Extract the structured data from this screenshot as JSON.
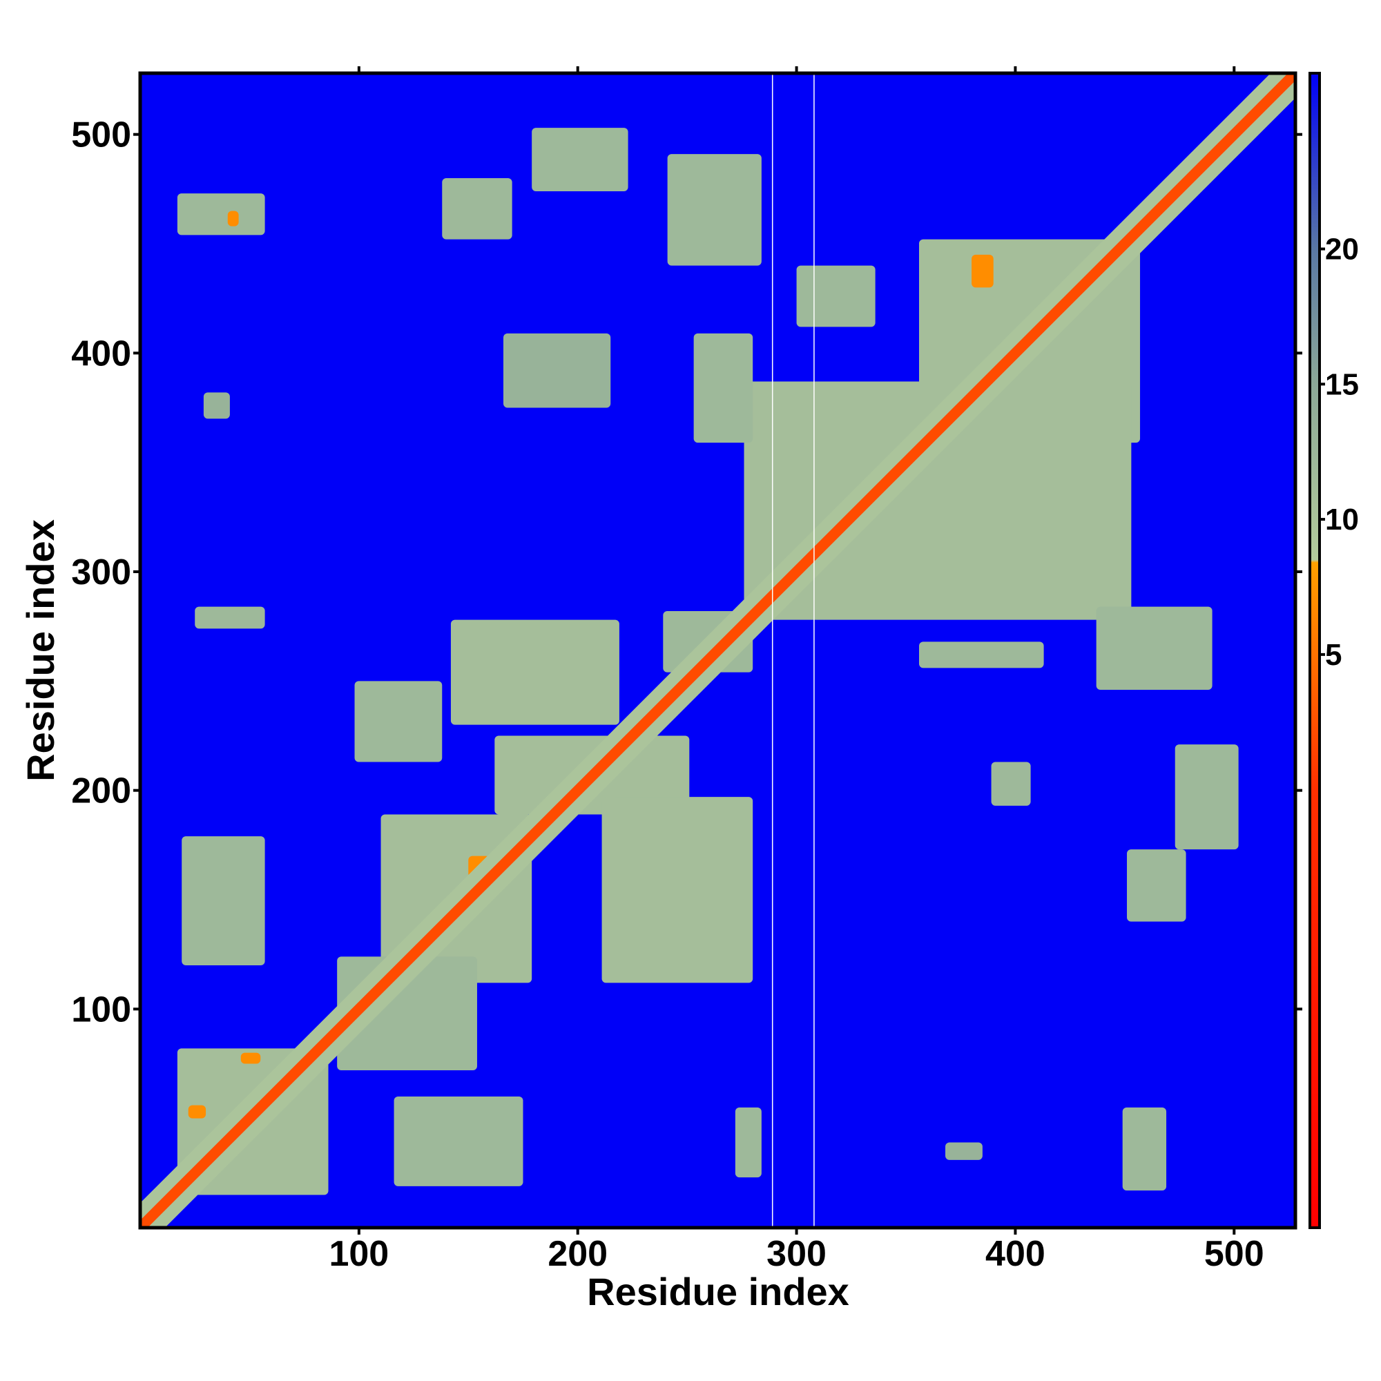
{
  "chart_data": {
    "type": "heatmap",
    "xlabel": "Residue index",
    "ylabel": "Residue index",
    "xlim": [
      0,
      528
    ],
    "ylim": [
      0,
      528
    ],
    "xticks": [
      100,
      200,
      300,
      400,
      500
    ],
    "yticks": [
      100,
      200,
      300,
      400,
      500
    ],
    "clim": [
      -16.2,
      26.5
    ],
    "cticks": [
      5,
      10,
      15,
      20
    ],
    "colorscale": [
      [
        -16.2,
        "#ff0000"
      ],
      [
        0,
        "#ff3000"
      ],
      [
        8.4,
        "#ffa000"
      ],
      [
        8.5,
        "#b4cc9c"
      ],
      [
        15,
        "#8ca898"
      ],
      [
        20,
        "#5a78a4"
      ],
      [
        26.5,
        "#0000f8"
      ]
    ],
    "diagonal": {
      "core": 2,
      "band": 10,
      "width": 8
    },
    "missing_columns": [
      289,
      308
    ],
    "regions": [
      {
        "x": [
          17,
          57
        ],
        "y": [
          454,
          473
        ],
        "value": 12
      },
      {
        "x": [
          138,
          170
        ],
        "y": [
          452,
          480
        ],
        "value": 12
      },
      {
        "x": [
          179,
          223
        ],
        "y": [
          474,
          503
        ],
        "value": 12
      },
      {
        "x": [
          241,
          284
        ],
        "y": [
          440,
          491
        ],
        "value": 12
      },
      {
        "x": [
          300,
          336
        ],
        "y": [
          412,
          440
        ],
        "value": 12
      },
      {
        "x": [
          356,
          457
        ],
        "y": [
          359,
          452
        ],
        "value": 11
      },
      {
        "x": [
          276,
          453
        ],
        "y": [
          278,
          387
        ],
        "value": 11
      },
      {
        "x": [
          166,
          215
        ],
        "y": [
          375,
          409
        ],
        "value": 13
      },
      {
        "x": [
          29,
          41
        ],
        "y": [
          370,
          382
        ],
        "value": 13
      },
      {
        "x": [
          253,
          280
        ],
        "y": [
          359,
          409
        ],
        "value": 12
      },
      {
        "x": [
          25,
          57
        ],
        "y": [
          274,
          284
        ],
        "value": 12
      },
      {
        "x": [
          356,
          413
        ],
        "y": [
          256,
          268
        ],
        "value": 12
      },
      {
        "x": [
          437,
          490
        ],
        "y": [
          246,
          284
        ],
        "value": 12
      },
      {
        "x": [
          98,
          138
        ],
        "y": [
          213,
          250
        ],
        "value": 12
      },
      {
        "x": [
          142,
          219
        ],
        "y": [
          230,
          278
        ],
        "value": 11
      },
      {
        "x": [
          239,
          280
        ],
        "y": [
          254,
          282
        ],
        "value": 12
      },
      {
        "x": [
          162,
          251
        ],
        "y": [
          189,
          225
        ],
        "value": 11
      },
      {
        "x": [
          389,
          407
        ],
        "y": [
          193,
          213
        ],
        "value": 12
      },
      {
        "x": [
          473,
          502
        ],
        "y": [
          173,
          221
        ],
        "value": 12
      },
      {
        "x": [
          19,
          57
        ],
        "y": [
          120,
          179
        ],
        "value": 12
      },
      {
        "x": [
          110,
          179
        ],
        "y": [
          112,
          189
        ],
        "value": 11
      },
      {
        "x": [
          211,
          280
        ],
        "y": [
          112,
          197
        ],
        "value": 11
      },
      {
        "x": [
          451,
          478
        ],
        "y": [
          140,
          173
        ],
        "value": 12
      },
      {
        "x": [
          17,
          86
        ],
        "y": [
          15,
          82
        ],
        "value": 11
      },
      {
        "x": [
          90,
          154
        ],
        "y": [
          72,
          124
        ],
        "value": 12
      },
      {
        "x": [
          116,
          175
        ],
        "y": [
          19,
          60
        ],
        "value": 12
      },
      {
        "x": [
          272,
          284
        ],
        "y": [
          23,
          55
        ],
        "value": 12
      },
      {
        "x": [
          449,
          469
        ],
        "y": [
          17,
          55
        ],
        "value": 12
      },
      {
        "x": [
          368,
          385
        ],
        "y": [
          31,
          39
        ],
        "value": 13
      },
      {
        "x": [
          40,
          45
        ],
        "y": [
          458,
          465
        ],
        "value": 7
      },
      {
        "x": [
          380,
          390
        ],
        "y": [
          430,
          445
        ],
        "value": 7
      },
      {
        "x": [
          150,
          160
        ],
        "y": [
          160,
          170
        ],
        "value": 7
      },
      {
        "x": [
          22,
          30
        ],
        "y": [
          50,
          56
        ],
        "value": 7
      },
      {
        "x": [
          46,
          55
        ],
        "y": [
          75,
          80
        ],
        "value": 7
      }
    ]
  }
}
